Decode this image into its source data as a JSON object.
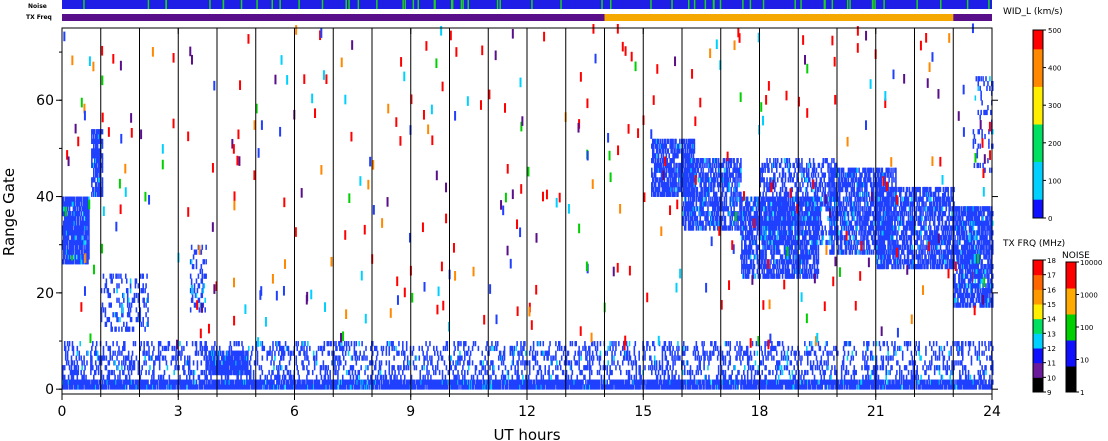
{
  "chart_data": {
    "type": "heatmap",
    "status_bars": {
      "noise_label": "Noise",
      "freq_label": "TX Freq",
      "freq_segments": [
        {
          "x0": 0,
          "x1": 14.0,
          "color": "#5a0f8a"
        },
        {
          "x0": 14.0,
          "x1": 23.0,
          "color": "#f5a800"
        },
        {
          "x0": 23.0,
          "x1": 24,
          "color": "#5a0f8a"
        }
      ]
    },
    "xlabel": "UT hours",
    "ylabel": "Range Gate",
    "xlim": [
      0,
      24
    ],
    "ylim": [
      -1,
      75
    ],
    "xticks": [
      0,
      3,
      6,
      9,
      12,
      15,
      18,
      21,
      24
    ],
    "xtick_labels": [
      "0",
      "3",
      "6",
      "9",
      "12",
      "15",
      "18",
      "21",
      "24"
    ],
    "yticks": [
      0,
      20,
      40,
      60
    ],
    "ytick_labels": [
      "0",
      "20",
      "40",
      "60"
    ],
    "vertical_lines_hours": [
      1,
      2,
      3,
      4,
      5,
      6,
      7,
      8,
      9,
      10,
      11,
      12,
      13,
      14,
      15,
      16,
      17,
      18,
      19,
      20,
      21,
      22,
      23
    ],
    "colorbars": [
      {
        "title": "WID_L (km/s)",
        "range": [
          0,
          500
        ],
        "tick_labels": [
          "0",
          "100",
          "200",
          "300",
          "400",
          "500"
        ],
        "colors": [
          "#1010ff",
          "#00d0ff",
          "#00e060",
          "#ffee00",
          "#ff8800",
          "#ff0000"
        ]
      },
      {
        "title": "TX FRQ (MHz)",
        "tick_labels": [
          "9",
          "10",
          "11",
          "12",
          "13",
          "14",
          "15",
          "16",
          "17",
          "18"
        ],
        "colors": [
          "#000000",
          "#6a1a9a",
          "#1010ff",
          "#00d0ff",
          "#00e060",
          "#ffee00",
          "#ff9900",
          "#ff6600",
          "#ff0000"
        ]
      },
      {
        "title": "NOISE",
        "tick_labels": [
          "1",
          "10",
          "100",
          "1000",
          "10000"
        ],
        "colors": [
          "#000000",
          "#1010ff",
          "#00d000",
          "#ffaa00",
          "#ff0000"
        ]
      }
    ],
    "clusters": [
      {
        "x0": 0.0,
        "x1": 0.7,
        "y0": 26,
        "y1": 40,
        "density": 0.85,
        "color": "#2040ff"
      },
      {
        "x0": 0.75,
        "x1": 1.05,
        "y0": 40,
        "y1": 54,
        "density": 0.75,
        "color": "#2040ff"
      },
      {
        "x0": 1.0,
        "x1": 2.2,
        "y0": 12,
        "y1": 24,
        "density": 0.25,
        "color": "#2040ff"
      },
      {
        "x0": 3.3,
        "x1": 3.7,
        "y0": 16,
        "y1": 30,
        "density": 0.3,
        "color": "#2040ff"
      },
      {
        "x0": 3.7,
        "x1": 4.8,
        "y0": 3,
        "y1": 8,
        "density": 0.85,
        "color": "#2040ff"
      },
      {
        "x0": 15.2,
        "x1": 16.3,
        "y0": 40,
        "y1": 52,
        "density": 0.7,
        "color": "#2040ff"
      },
      {
        "x0": 16.0,
        "x1": 17.5,
        "y0": 33,
        "y1": 48,
        "density": 0.6,
        "color": "#2040ff"
      },
      {
        "x0": 17.5,
        "x1": 19.5,
        "y0": 23,
        "y1": 40,
        "density": 0.65,
        "color": "#2040ff"
      },
      {
        "x0": 18.0,
        "x1": 20.0,
        "y0": 30,
        "y1": 48,
        "density": 0.4,
        "color": "#2040ff"
      },
      {
        "x0": 19.8,
        "x1": 21.5,
        "y0": 28,
        "y1": 46,
        "density": 0.6,
        "color": "#2040ff"
      },
      {
        "x0": 21.0,
        "x1": 23.0,
        "y0": 25,
        "y1": 42,
        "density": 0.6,
        "color": "#2040ff"
      },
      {
        "x0": 23.0,
        "x1": 24.0,
        "y0": 17,
        "y1": 38,
        "density": 0.7,
        "color": "#2040ff"
      },
      {
        "x0": 23.5,
        "x1": 24.0,
        "y0": 45,
        "y1": 65,
        "density": 0.2,
        "color": "#2040ff"
      }
    ],
    "ground_scatter": {
      "x0": 0,
      "x1": 24,
      "y0": 0,
      "y1": 2,
      "density": 0.9,
      "color": "#2040ff"
    },
    "near_range_scatter": {
      "x0": 0,
      "x1": 24,
      "y0": 2,
      "y1": 10,
      "density": 0.25,
      "color": "#2040ff"
    },
    "random_scatter_palette": [
      "#ff0000",
      "#ff0000",
      "#ff0000",
      "#2040ff",
      "#00d0ff",
      "#00d000",
      "#ff8800",
      "#5a0f8a"
    ]
  }
}
